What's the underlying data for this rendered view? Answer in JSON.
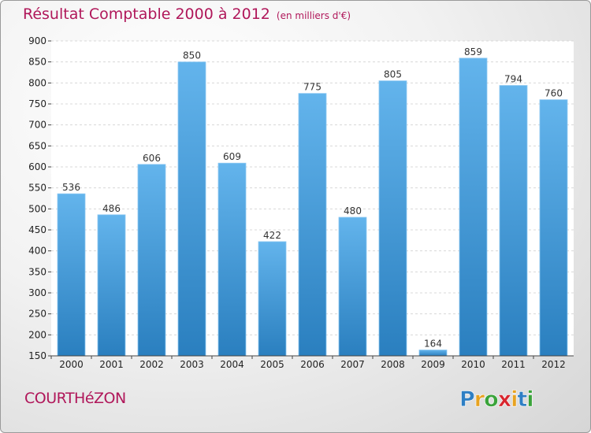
{
  "header": {
    "title": "Résultat Comptable 2000 à 2012",
    "subtitle": "(en milliers d'€)"
  },
  "footer": {
    "town": "COURTHéZON",
    "brand": "Proxiti"
  },
  "colors": {
    "title": "#b0175a",
    "bar_top": "#63b4ec",
    "bar_bottom": "#2a7fbf"
  },
  "chart_data": {
    "type": "bar",
    "title": "Résultat Comptable 2000 à 2012",
    "subtitle": "(en milliers d'€)",
    "xlabel": "",
    "ylabel": "",
    "categories": [
      "2000",
      "2001",
      "2002",
      "2003",
      "2004",
      "2005",
      "2006",
      "2007",
      "2008",
      "2009",
      "2010",
      "2011",
      "2012"
    ],
    "values": [
      536,
      486,
      606,
      850,
      609,
      422,
      775,
      480,
      805,
      164,
      859,
      794,
      760
    ],
    "ylim": [
      150,
      900
    ],
    "yticks": [
      150,
      200,
      250,
      300,
      350,
      400,
      450,
      500,
      550,
      600,
      650,
      700,
      750,
      800,
      850,
      900
    ],
    "grid": true,
    "legend": "none",
    "data_labels": true
  }
}
